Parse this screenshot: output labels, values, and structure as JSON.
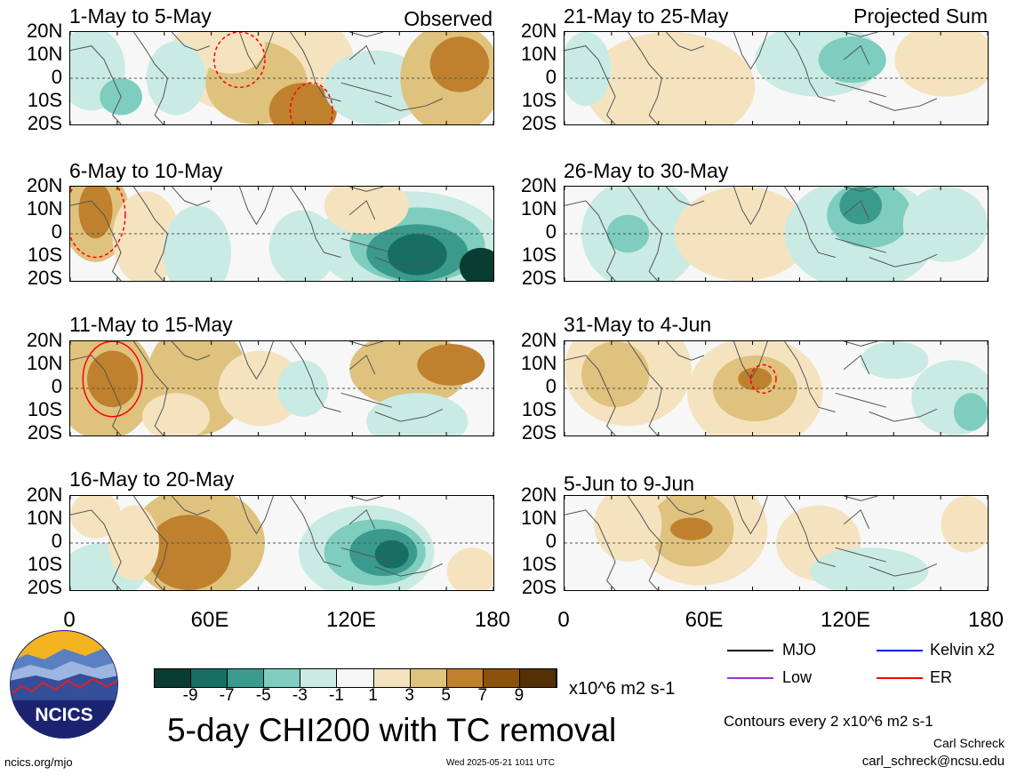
{
  "panels": [
    {
      "title": "1-May to 5-May",
      "corner": "Observed",
      "pattern": 1
    },
    {
      "title": "6-May to 10-May",
      "corner": "",
      "pattern": 2
    },
    {
      "title": "11-May to 15-May",
      "corner": "",
      "pattern": 3
    },
    {
      "title": "16-May to 20-May",
      "corner": "",
      "pattern": 4
    },
    {
      "title": "21-May to 25-May",
      "corner": "Projected Sum",
      "pattern": 5
    },
    {
      "title": "26-May to 30-May",
      "corner": "",
      "pattern": 6
    },
    {
      "title": "31-May to 4-Jun",
      "corner": "",
      "pattern": 7
    },
    {
      "title": "5-Jun to 9-Jun",
      "corner": "",
      "pattern": 8
    }
  ],
  "lat_labels": [
    "20N",
    "10N",
    "0",
    "10S",
    "20S"
  ],
  "lon_labels": [
    "0",
    "60E",
    "120E",
    "180"
  ],
  "colorbar": {
    "colors": [
      "#0a3d32",
      "#176e64",
      "#3a9a8d",
      "#7ecdbf",
      "#c9ebe4",
      "#f7f7f7",
      "#f5e3c0",
      "#dfc27d",
      "#bf812d",
      "#8c510a",
      "#543005"
    ],
    "labels": [
      "-9",
      "-7",
      "-5",
      "-3",
      "-1",
      "1",
      "3",
      "5",
      "7",
      "9"
    ],
    "units": "x10^6 m2 s-1"
  },
  "title": "5-day CHI200 with TC removal",
  "legend": [
    {
      "label": "MJO",
      "color": "#000000"
    },
    {
      "label": "Kelvin x2",
      "color": "#0000ff"
    },
    {
      "label": "Low",
      "color": "#9932cc"
    },
    {
      "label": "ER",
      "color": "#ff0000"
    }
  ],
  "contour_note": "Contours every 2 x10^6 m2 s-1",
  "author": "Carl Schreck",
  "email": "carl_schreck@ncsu.edu",
  "site": "ncics.org/mjo",
  "timestamp": "Wed 2025-05-21 1011 UTC",
  "logo_text": "NCICS"
}
